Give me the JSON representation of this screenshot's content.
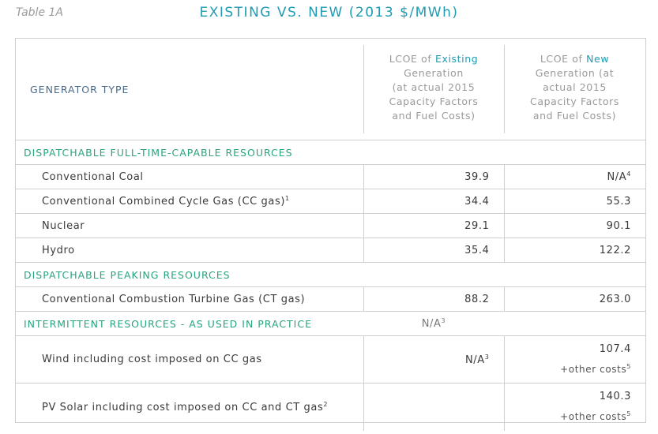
{
  "table_label": "Table 1A",
  "title": "EXISTING VS. NEW (2013 $/MWh)",
  "header": {
    "generator_type": "GENERATOR TYPE",
    "col_existing": {
      "pre": "LCOE of ",
      "highlight": "Existing",
      "rest": [
        "Generation",
        "(at actual 2015",
        "Capacity Factors",
        "and Fuel Costs)"
      ]
    },
    "col_new": {
      "pre": "LCOE of ",
      "highlight": "New",
      "rest": [
        "Generation (at",
        "actual 2015",
        "Capacity Factors",
        "and Fuel Costs)"
      ]
    }
  },
  "sections": {
    "dispatchable_full": "DISPATCHABLE FULL-TIME-CAPABLE RESOURCES",
    "dispatchable_peaking": "DISPATCHABLE PEAKING RESOURCES",
    "intermittent": "INTERMITTENT RESOURCES - AS USED IN PRACTICE",
    "intermittent_existing": "N/A",
    "intermittent_existing_note": "3"
  },
  "rows": {
    "coal": {
      "name": "Conventional Coal",
      "existing": "39.9",
      "new": "N/A",
      "new_note": "4"
    },
    "ccgas": {
      "name": "Conventional Combined Cycle Gas (CC gas)",
      "name_note": "1",
      "existing": "34.4",
      "new": "55.3"
    },
    "nuclear": {
      "name": "Nuclear",
      "existing": "29.1",
      "new": "90.1"
    },
    "hydro": {
      "name": "Hydro",
      "existing": "35.4",
      "new": "122.2"
    },
    "ctgas": {
      "name": "Conventional Combustion Turbine Gas (CT gas)",
      "existing": "88.2",
      "new": "263.0"
    },
    "wind": {
      "name": "Wind including cost imposed on CC gas",
      "existing": "N/A",
      "existing_note": "3",
      "new": "107.4",
      "new_extra": "+other costs",
      "new_extra_note": "5"
    },
    "pv": {
      "name": "PV Solar including cost imposed on CC and CT gas",
      "name_note": "2",
      "existing": "",
      "new": "140.3",
      "new_extra": "+other costs",
      "new_extra_note": "5"
    }
  }
}
